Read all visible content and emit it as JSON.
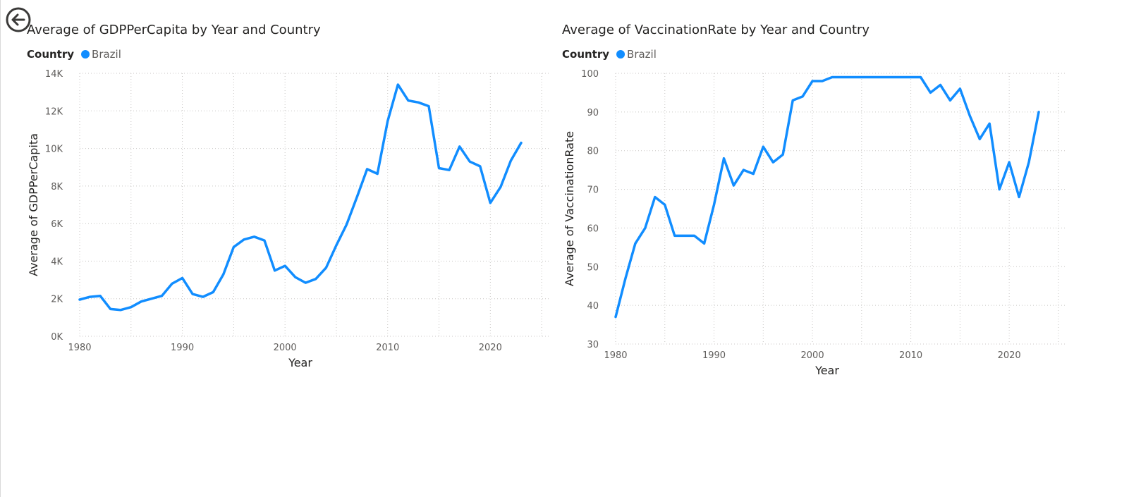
{
  "ui": {
    "back_icon": "arrow-left-circle-icon"
  },
  "chart_data": [
    {
      "type": "line",
      "title": "Average of GDPPerCapita by Year and Country",
      "legend": {
        "title": "Country",
        "position": "top-left"
      },
      "xlabel": "Year",
      "ylabel": "Average of GDPPerCapita",
      "xlim": [
        1980,
        2023
      ],
      "ylim": [
        0,
        14000
      ],
      "xticks": [
        1980,
        1990,
        2000,
        2010,
        2020
      ],
      "yticks": [
        {
          "value": 0,
          "label": "0K"
        },
        {
          "value": 2000,
          "label": "2K"
        },
        {
          "value": 4000,
          "label": "4K"
        },
        {
          "value": 6000,
          "label": "6K"
        },
        {
          "value": 8000,
          "label": "8K"
        },
        {
          "value": 10000,
          "label": "10K"
        },
        {
          "value": 12000,
          "label": "12K"
        },
        {
          "value": 14000,
          "label": "14K"
        }
      ],
      "grid": true,
      "x": [
        1980,
        1981,
        1982,
        1983,
        1984,
        1985,
        1986,
        1987,
        1988,
        1989,
        1990,
        1991,
        1992,
        1993,
        1994,
        1995,
        1996,
        1997,
        1998,
        1999,
        2000,
        2001,
        2002,
        2003,
        2004,
        2005,
        2006,
        2007,
        2008,
        2009,
        2010,
        2011,
        2012,
        2013,
        2014,
        2015,
        2016,
        2017,
        2018,
        2019,
        2020,
        2021,
        2022,
        2023
      ],
      "series": [
        {
          "name": "Brazil",
          "color": "#118DFF",
          "values": [
            1950,
            2100,
            2150,
            1450,
            1400,
            1550,
            1850,
            2000,
            2150,
            2800,
            3100,
            2250,
            2100,
            2350,
            3300,
            4750,
            5150,
            5300,
            5100,
            3500,
            3750,
            3150,
            2850,
            3050,
            3650,
            4850,
            5950,
            7400,
            8900,
            8650,
            11450,
            13400,
            12550,
            12450,
            12250,
            8950,
            8850,
            10100,
            9300,
            9050,
            7100,
            7950,
            9350,
            10300
          ]
        }
      ]
    },
    {
      "type": "line",
      "title": "Average of VaccinationRate by Year and Country",
      "legend": {
        "title": "Country",
        "position": "top-left"
      },
      "xlabel": "Year",
      "ylabel": "Average of VaccinationRate",
      "xlim": [
        1980,
        2023
      ],
      "ylim": [
        30,
        100
      ],
      "xticks": [
        1980,
        1990,
        2000,
        2010,
        2020
      ],
      "yticks": [
        {
          "value": 30,
          "label": "30"
        },
        {
          "value": 40,
          "label": "40"
        },
        {
          "value": 50,
          "label": "50"
        },
        {
          "value": 60,
          "label": "60"
        },
        {
          "value": 70,
          "label": "70"
        },
        {
          "value": 80,
          "label": "80"
        },
        {
          "value": 90,
          "label": "90"
        },
        {
          "value": 100,
          "label": "100"
        }
      ],
      "grid": true,
      "x": [
        1980,
        1981,
        1982,
        1983,
        1984,
        1985,
        1986,
        1987,
        1988,
        1989,
        1990,
        1991,
        1992,
        1993,
        1994,
        1995,
        1996,
        1997,
        1998,
        1999,
        2000,
        2001,
        2002,
        2003,
        2004,
        2005,
        2006,
        2007,
        2008,
        2009,
        2010,
        2011,
        2012,
        2013,
        2014,
        2015,
        2016,
        2017,
        2018,
        2019,
        2020,
        2021,
        2022,
        2023
      ],
      "series": [
        {
          "name": "Brazil",
          "color": "#118DFF",
          "values": [
            37,
            47,
            56,
            60,
            68,
            66,
            58,
            58,
            58,
            56,
            66,
            78,
            71,
            75,
            74,
            81,
            77,
            79,
            93,
            94,
            98,
            98,
            99,
            99,
            99,
            99,
            99,
            99,
            99,
            99,
            99,
            99,
            95,
            97,
            93,
            96,
            89,
            83,
            87,
            70,
            77,
            68,
            77,
            90
          ]
        }
      ]
    }
  ]
}
